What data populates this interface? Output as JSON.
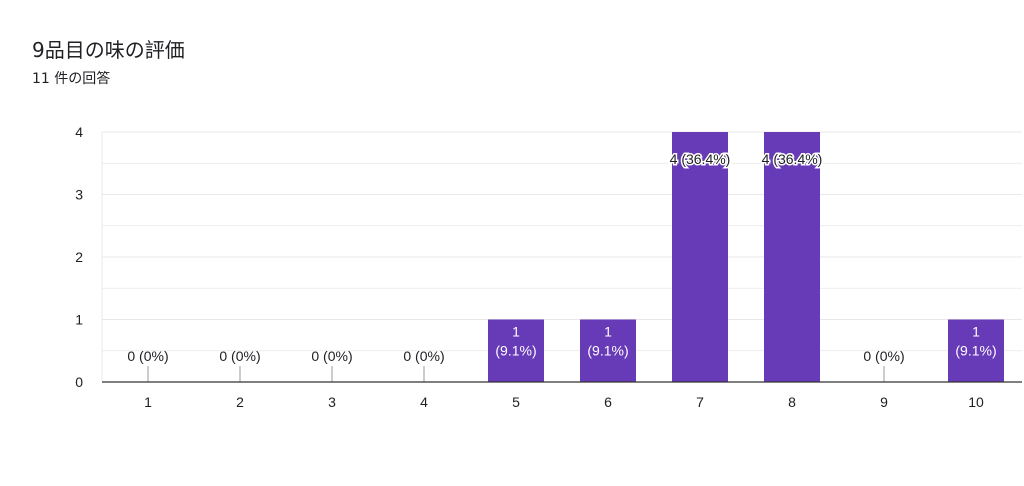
{
  "header": {
    "title": "9品目の味の評価",
    "subtitle": "11 件の回答"
  },
  "colors": {
    "bar": "#673ab7",
    "grid": "#e8e8e8",
    "axis": "#333333",
    "label": "#202124",
    "bar_label": "#ffffff"
  },
  "chart_data": {
    "type": "bar",
    "title": "9品目の味の評価",
    "subtitle": "11 件の回答",
    "categories": [
      "1",
      "2",
      "3",
      "4",
      "5",
      "6",
      "7",
      "8",
      "9",
      "10"
    ],
    "values": [
      0,
      0,
      0,
      0,
      1,
      1,
      4,
      4,
      0,
      1
    ],
    "data_labels": [
      "0 (0%)",
      "0 (0%)",
      "0 (0%)",
      "0 (0%)",
      "1 (9.1%)",
      "1 (9.1%)",
      "4 (36.4%)",
      "4 (36.4%)",
      "0 (0%)",
      "1 (9.1%)"
    ],
    "ylim": [
      0,
      4
    ],
    "yticks": [
      "0",
      "1",
      "2",
      "3",
      "4"
    ],
    "xlabel": "",
    "ylabel": "",
    "grid": true
  }
}
